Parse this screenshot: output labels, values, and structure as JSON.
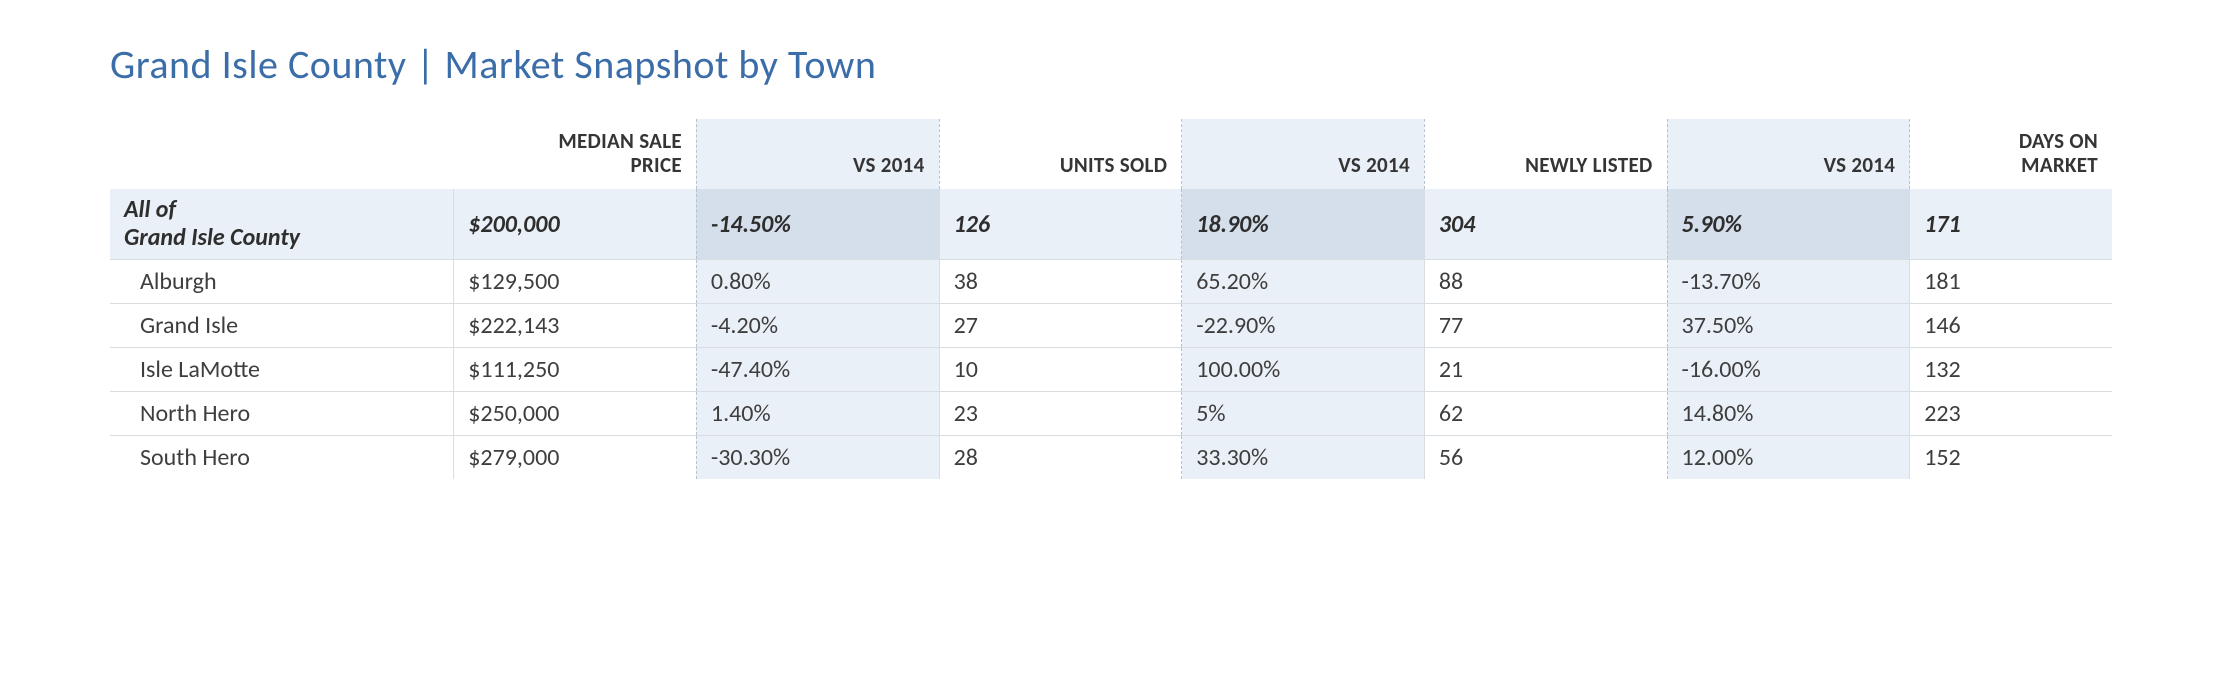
{
  "title": "Grand Isle County | Market Snapshot by Town",
  "columns": {
    "name": "",
    "median": "MEDIAN SALE PRICE",
    "median_vs": "VS 2014",
    "units": "UNITS SOLD",
    "units_vs": "VS 2014",
    "listed": "NEWLY LISTED",
    "listed_vs": "VS 2014",
    "dom": "DAYS ON MARKET"
  },
  "summary": {
    "name_line1": "All of",
    "name_line2": "Grand Isle County",
    "median": "$200,000",
    "median_vs": "-14.50%",
    "units": "126",
    "units_vs": "18.90%",
    "listed": "304",
    "listed_vs": "5.90%",
    "dom": "171"
  },
  "rows": [
    {
      "name": "Alburgh",
      "median": "$129,500",
      "median_vs": "0.80%",
      "units": "38",
      "units_vs": "65.20%",
      "listed": "88",
      "listed_vs": "-13.70%",
      "dom": "181"
    },
    {
      "name": "Grand Isle",
      "median": "$222,143",
      "median_vs": "-4.20%",
      "units": "27",
      "units_vs": "-22.90%",
      "listed": "77",
      "listed_vs": "37.50%",
      "dom": "146"
    },
    {
      "name": "Isle LaMotte",
      "median": "$111,250",
      "median_vs": "-47.40%",
      "units": "10",
      "units_vs": "100.00%",
      "listed": "21",
      "listed_vs": "-16.00%",
      "dom": "132"
    },
    {
      "name": "North Hero",
      "median": "$250,000",
      "median_vs": "1.40%",
      "units": "23",
      "units_vs": "5%",
      "listed": "62",
      "listed_vs": "14.80%",
      "dom": "223"
    },
    {
      "name": "South Hero",
      "median": "$279,000",
      "median_vs": "-30.30%",
      "units": "28",
      "units_vs": "33.30%",
      "listed": "56",
      "listed_vs": "12.00%",
      "dom": "152"
    }
  ],
  "style": {
    "title_color": "#3b6ea8",
    "shade_light": "#eaf0f7",
    "shade_dark": "#d5dfeb",
    "border_color": "#d8dde2",
    "dashed_border": "#b7c2d0",
    "text_color": "#3e3e3e"
  }
}
